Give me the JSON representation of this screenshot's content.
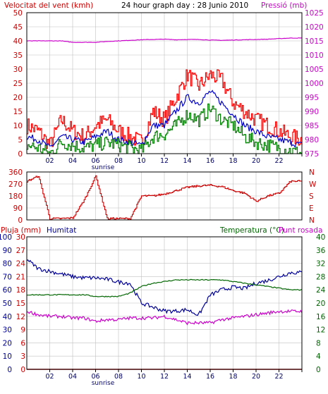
{
  "header": {
    "wind_label": "Velocitat del vent (kmh)",
    "title": "24 hour graph day : 28 Junio 2010",
    "pressure_label": "Pressió (mb)"
  },
  "colors": {
    "frame": "#000000",
    "grid": "#c0c0c0",
    "gust": "#ff0000",
    "average": "#0000cc",
    "minimum": "#008000",
    "pressure": "#cc00cc",
    "left_axis": "#cc0000",
    "right_axis": "#cc00cc",
    "humidity": "#000099",
    "temperature": "#006600",
    "dewpoint": "#cc00cc"
  },
  "x_ticks": [
    "02",
    "04",
    "06",
    "08",
    "10",
    "12",
    "14",
    "16",
    "18",
    "20",
    "22",
    ""
  ],
  "sunrise_label": "sunrise",
  "sunrise_hour": 6.4,
  "chart_data": [
    {
      "type": "line",
      "name": "wind",
      "x_range": [
        0,
        24
      ],
      "ylim": [
        0,
        50
      ],
      "yticks": [
        0,
        5,
        10,
        15,
        20,
        25,
        30,
        35,
        40,
        45,
        50
      ],
      "y2lim": [
        975,
        1025
      ],
      "y2ticks": [
        975,
        980,
        985,
        990,
        995,
        1000,
        1005,
        1010,
        1015,
        1020,
        1025
      ],
      "x": [
        0,
        1,
        2,
        3,
        4,
        5,
        6,
        7,
        8,
        9,
        10,
        11,
        12,
        13,
        14,
        15,
        16,
        17,
        18,
        19,
        20,
        21,
        22,
        23,
        24
      ],
      "series": [
        {
          "key": "gust",
          "color": "#ff0000",
          "values": [
            10,
            8,
            3,
            12,
            8,
            6,
            10,
            12,
            8,
            6,
            4,
            15,
            12,
            20,
            28,
            24,
            28,
            26,
            18,
            15,
            12,
            10,
            8,
            6,
            5
          ]
        },
        {
          "key": "average",
          "color": "#0000cc",
          "values": [
            6,
            5,
            2,
            6,
            5,
            4,
            6,
            8,
            5,
            4,
            3,
            10,
            10,
            15,
            20,
            18,
            22,
            18,
            14,
            10,
            8,
            6,
            5,
            4,
            3
          ]
        },
        {
          "key": "minimum",
          "color": "#008000",
          "values": [
            3,
            2,
            0,
            4,
            3,
            2,
            3,
            4,
            3,
            2,
            1,
            6,
            7,
            10,
            14,
            12,
            16,
            12,
            10,
            6,
            4,
            3,
            2,
            1,
            0
          ]
        },
        {
          "key": "pressure",
          "color": "#cc00cc",
          "axis": "right",
          "values": [
            1015,
            1015,
            1015,
            1015,
            1014.5,
            1014.5,
            1014.5,
            1014.8,
            1015,
            1015.2,
            1015.4,
            1015.5,
            1015.6,
            1015.4,
            1015.5,
            1015.5,
            1015.3,
            1015.2,
            1015.3,
            1015.4,
            1015.5,
            1015.6,
            1015.8,
            1016,
            1016
          ]
        }
      ]
    },
    {
      "type": "line",
      "name": "direction",
      "x_range": [
        0,
        24
      ],
      "ylim": [
        0,
        360
      ],
      "yticks": [
        0,
        90,
        180,
        270,
        360
      ],
      "compass_labels": [
        "N",
        "W",
        "S",
        "E",
        "N"
      ],
      "x": [
        0,
        1,
        2,
        3,
        4,
        5,
        6,
        7,
        8,
        9,
        10,
        11,
        12,
        13,
        14,
        15,
        16,
        17,
        18,
        19,
        20,
        21,
        22,
        23,
        24
      ],
      "series": [
        {
          "key": "direction",
          "color": "#cc0000",
          "values": [
            290,
            330,
            10,
            10,
            15,
            150,
            330,
            10,
            10,
            10,
            180,
            180,
            195,
            220,
            245,
            255,
            260,
            250,
            220,
            200,
            140,
            180,
            200,
            290,
            290
          ]
        }
      ]
    },
    {
      "type": "line",
      "name": "humidity_temperature",
      "x_range": [
        0,
        24
      ],
      "rain_label": "Pluja (mm)",
      "humidity_label": "Humitat",
      "temperature_label": "Temperatura (°C)",
      "dewpoint_label": "Punt rosada",
      "rain_ticks": [
        0,
        3,
        6,
        9,
        12,
        15,
        18,
        21,
        24,
        27,
        30
      ],
      "humidity_ticks": [
        0,
        10,
        20,
        30,
        40,
        50,
        60,
        70,
        80,
        90,
        100
      ],
      "temperature_ticks": [
        0,
        4,
        8,
        12,
        16,
        20,
        24,
        28,
        32,
        36,
        40
      ],
      "x": [
        0,
        1,
        2,
        3,
        4,
        5,
        6,
        7,
        8,
        9,
        10,
        11,
        12,
        13,
        14,
        15,
        16,
        17,
        18,
        19,
        20,
        21,
        22,
        23,
        24
      ],
      "series": [
        {
          "key": "humidity",
          "color": "#000099",
          "axis": "humidity",
          "values": [
            83,
            76,
            74,
            72,
            70,
            69,
            69,
            68,
            66,
            65,
            50,
            47,
            44,
            44,
            45,
            41,
            56,
            60,
            62,
            61,
            65,
            67,
            70,
            73,
            73
          ]
        },
        {
          "key": "temperature",
          "color": "#006600",
          "axis": "temperature",
          "values": [
            22.5,
            22.5,
            22.5,
            22.5,
            22.5,
            22.5,
            22,
            22,
            22,
            23,
            25,
            26,
            26.5,
            27,
            27,
            27,
            27,
            27,
            26.5,
            26,
            25.5,
            25,
            24.5,
            24,
            24
          ]
        },
        {
          "key": "dewpoint",
          "color": "#cc00cc",
          "axis": "temperature",
          "values": [
            17.5,
            16.5,
            16,
            16,
            15.5,
            15.5,
            14.5,
            15,
            15,
            15.5,
            15.5,
            15.5,
            16,
            15,
            14,
            14,
            14,
            15,
            15.5,
            16,
            16.5,
            17,
            17.5,
            17.5,
            17.5
          ]
        },
        {
          "key": "rain",
          "color": "#cc0000",
          "axis": "rain",
          "values": [
            0,
            0,
            0,
            0,
            0,
            0,
            0,
            0,
            0,
            0,
            0,
            0,
            0,
            0,
            0,
            0,
            0,
            0,
            0,
            0,
            0,
            0,
            0,
            0,
            0
          ]
        }
      ]
    }
  ]
}
